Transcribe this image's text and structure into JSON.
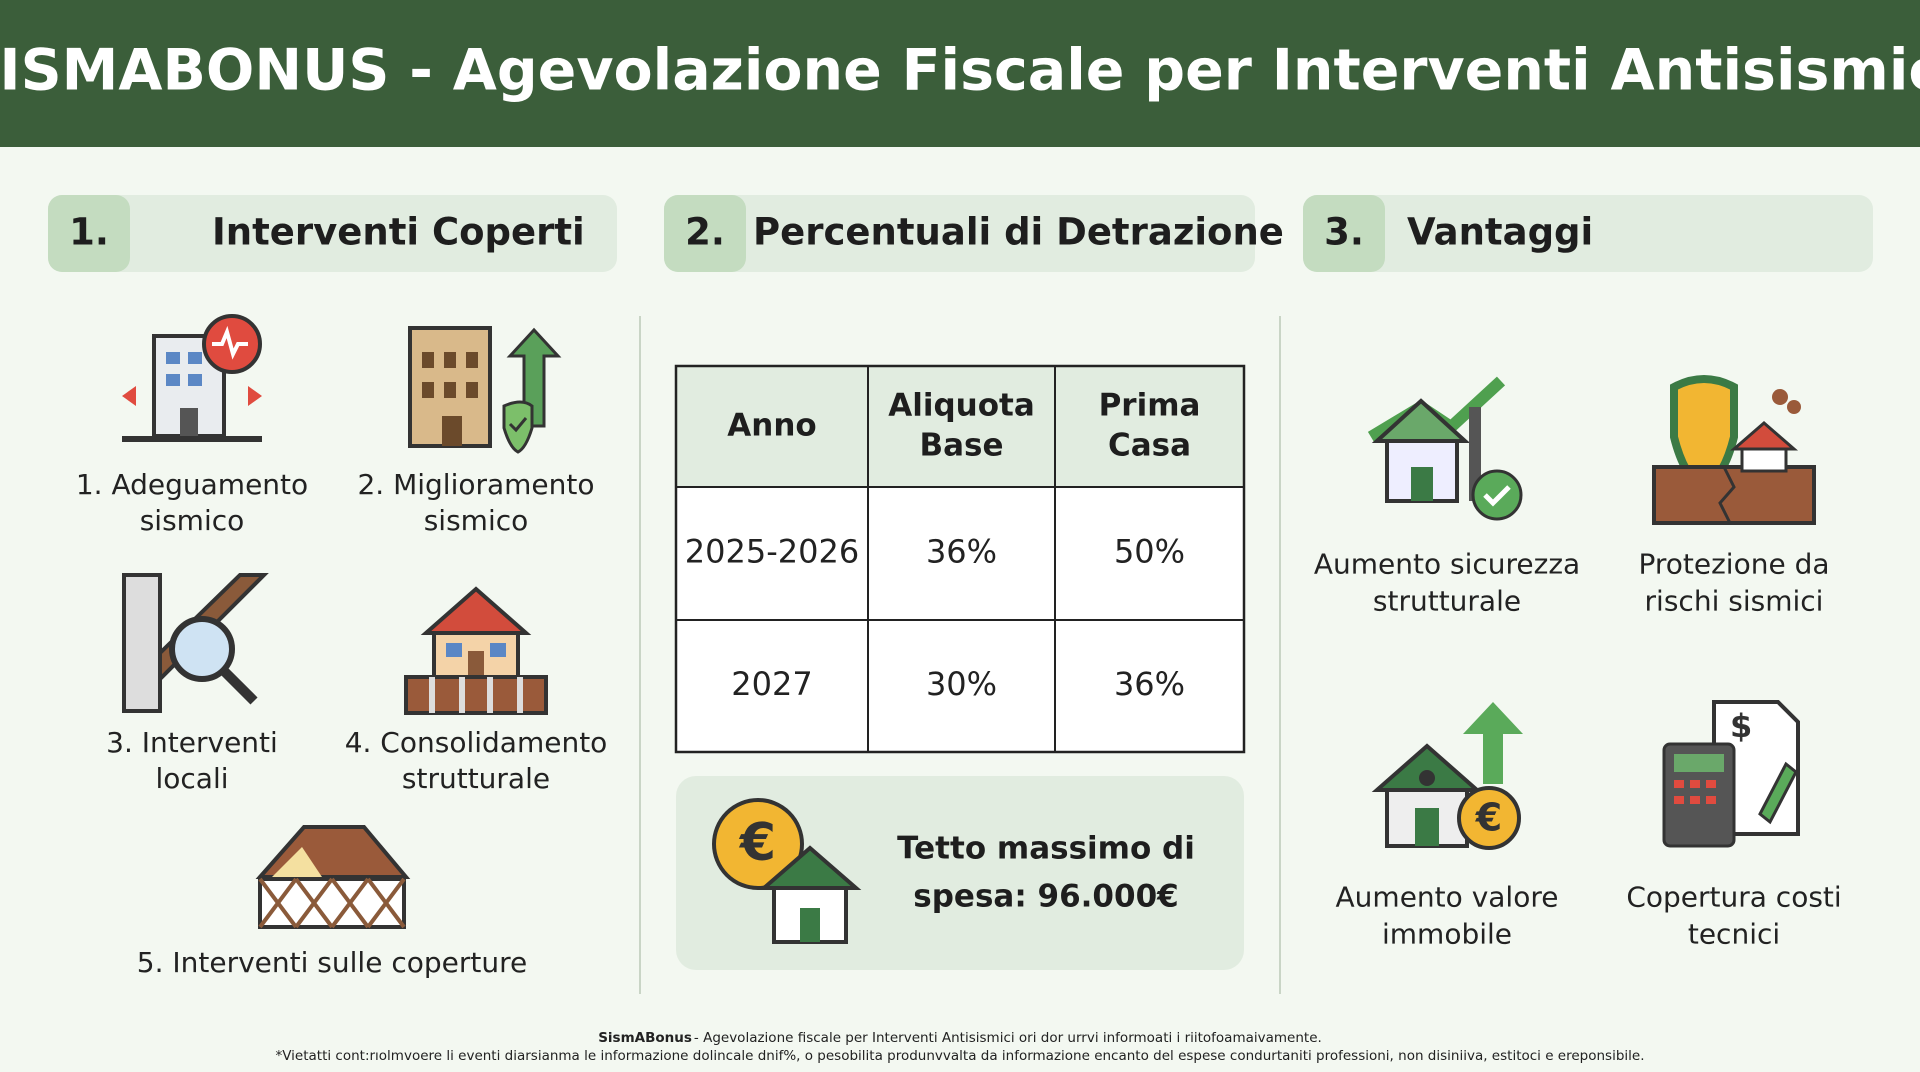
{
  "header": {
    "title": "SISMABONUS - Agevolazione Fiscale per Interventi Antisismici"
  },
  "sections": [
    {
      "number": "1.",
      "title": "Interventi Coperti",
      "items": [
        {
          "label": [
            "1. Adeguamento",
            "sismico"
          ]
        },
        {
          "label": [
            "2. Miglioramento",
            "sismico"
          ]
        },
        {
          "label": [
            "3. Interventi",
            "locali"
          ]
        },
        {
          "label": [
            "4. Consolidamento",
            "strutturale"
          ]
        },
        {
          "label": [
            "5. Interventi sulle coperture"
          ]
        }
      ]
    },
    {
      "number": "2.",
      "title": "Percentuali di Detrazione",
      "table": {
        "headers": [
          [
            "Anno"
          ],
          [
            "Aliquota",
            "Base"
          ],
          [
            "Prima",
            "Casa"
          ]
        ],
        "rows": [
          [
            "2025-2026",
            "36%",
            "50%"
          ],
          [
            "2027",
            "30%",
            "36%"
          ]
        ]
      },
      "note": [
        "Tetto massimo di",
        "spesa: 96.000€"
      ]
    },
    {
      "number": "3.",
      "title": "Vantaggi",
      "items": [
        {
          "label": [
            "Aumento sicurezza",
            "strutturale"
          ]
        },
        {
          "label": [
            "Protezione da",
            "rischi sismici"
          ]
        },
        {
          "label": [
            "Aumento valore",
            "immobile"
          ]
        },
        {
          "label": [
            "Copertura costi",
            "tecnici"
          ]
        }
      ]
    }
  ],
  "footer": {
    "brand": "SismABonus",
    "line1": "- Agevolazione fiscale per Interventi Antisismici ori dor urrvi informoati i riitofoamaivamente.",
    "line2": "*Vietatti cont:rıolmvoere li eventi diarsianma le informazione dolincale dnif%, o pesobilita produnvvalta da informazione encanto del espese condurtaniti professioni, non disiniiva, estitoci e ereponsibile."
  }
}
